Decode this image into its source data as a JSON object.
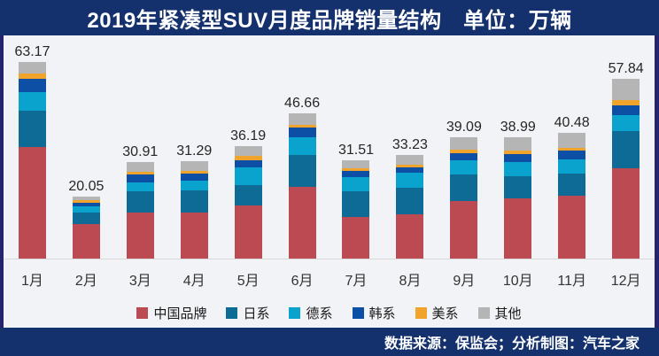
{
  "header": {
    "title": "2019年紧凑型SUV月度品牌销量结构　单位：万辆"
  },
  "footer": {
    "source_text": "数据来源：保监会；分析制图：汽车之家"
  },
  "colors": {
    "banner_bg": "#14316d",
    "frame_border": "#23246b",
    "chart_bg": "#f2f3f6",
    "axis_line": "#d9d9d9",
    "value_label": "#262626"
  },
  "chart_data": {
    "type": "bar",
    "stacked": true,
    "title": "2019年紧凑型SUV月度品牌销量结构",
    "unit_label": "单位：万辆",
    "grid": false,
    "legend_position": "bottom",
    "ylim": [
      0,
      65
    ],
    "categories": [
      "1月",
      "2月",
      "3月",
      "4月",
      "5月",
      "6月",
      "7月",
      "8月",
      "9月",
      "10月",
      "11月",
      "12月"
    ],
    "totals": [
      63.17,
      20.05,
      30.91,
      31.29,
      36.19,
      46.66,
      31.51,
      33.23,
      39.09,
      38.99,
      40.48,
      57.84
    ],
    "series": [
      {
        "name": "中国品牌",
        "color": "#bc4a52",
        "values": [
          35.9,
          11.2,
          14.7,
          14.8,
          17.1,
          23.1,
          13.4,
          14.2,
          18.4,
          19.4,
          20.2,
          29.1
        ]
      },
      {
        "name": "日系",
        "color": "#0e6b96",
        "values": [
          11.5,
          3.6,
          6.9,
          7.0,
          6.5,
          10.1,
          8.3,
          8.6,
          8.6,
          7.2,
          7.2,
          11.75
        ]
      },
      {
        "name": "德系",
        "color": "#09a3cd",
        "values": [
          6.2,
          2.0,
          3.0,
          3.2,
          5.6,
          5.8,
          4.6,
          4.7,
          4.6,
          4.5,
          4.6,
          5.25
        ]
      },
      {
        "name": "韩系",
        "color": "#0d4fa5",
        "values": [
          4.3,
          1.2,
          2.5,
          2.4,
          2.5,
          3.05,
          1.9,
          1.9,
          2.4,
          2.4,
          2.6,
          3.05
        ]
      },
      {
        "name": "美系",
        "color": "#f0a42c",
        "values": [
          1.65,
          0.8,
          0.95,
          0.9,
          1.2,
          1.05,
          0.95,
          0.8,
          1.15,
          1.25,
          0.95,
          1.7
        ]
      },
      {
        "name": "其他",
        "color": "#b5b5b5",
        "values": [
          3.62,
          1.25,
          2.86,
          2.99,
          3.29,
          3.56,
          2.36,
          3.03,
          3.94,
          4.24,
          4.93,
          6.99
        ]
      }
    ]
  }
}
